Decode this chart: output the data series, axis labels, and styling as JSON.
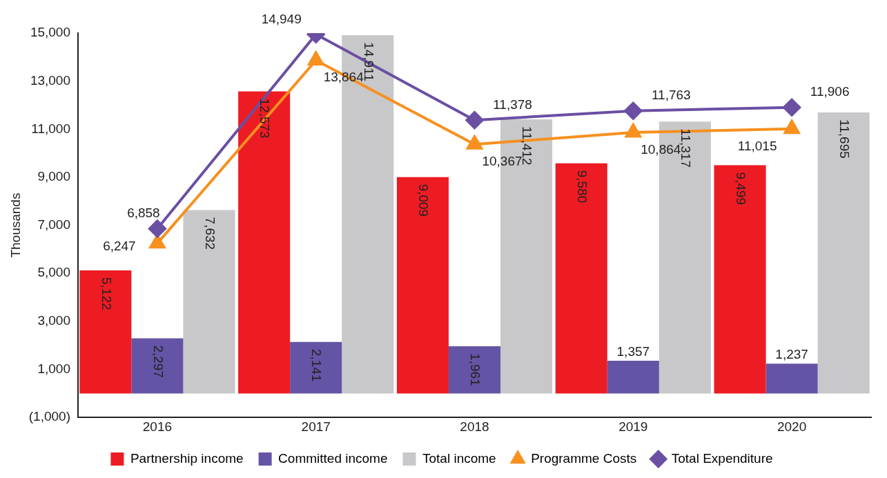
{
  "chart_data": {
    "type": "bar",
    "ylabel": "Thousands",
    "categories": [
      "2016",
      "2017",
      "2018",
      "2019",
      "2020"
    ],
    "series": [
      {
        "name": "Partnership income",
        "color": "#ed1c24",
        "values": [
          5122,
          12573,
          9009,
          9580,
          9499
        ],
        "value_labels": [
          "5,122",
          "12,573",
          "9,009",
          "9,580",
          "9,499"
        ]
      },
      {
        "name": "Committed income",
        "color": "#6554a5",
        "values": [
          2297,
          2141,
          1961,
          1357,
          1237
        ],
        "value_labels": [
          "2,297",
          "2,141",
          "1,961",
          "1,357",
          "1,237"
        ]
      },
      {
        "name": "Total income",
        "color": "#c8c8ca",
        "values": [
          7632,
          14911,
          11412,
          11317,
          11695
        ],
        "value_labels": [
          "7,632",
          "14,911",
          "11,412",
          "11,317",
          "11,695"
        ]
      },
      {
        "name": "Programme Costs",
        "type": "line",
        "color": "#f7901e",
        "marker": "triangle",
        "values": [
          6247,
          13864,
          10367,
          10864,
          11015
        ],
        "value_labels": [
          "6,247",
          "13,864",
          "10,367",
          "10,864",
          "11,015"
        ]
      },
      {
        "name": "Total Expenditure",
        "type": "line",
        "color": "#6a4fa3",
        "marker": "diamond",
        "values": [
          6858,
          14949,
          11378,
          11763,
          11906
        ],
        "value_labels": [
          "6,858",
          "14,949",
          "11,378",
          "11,763",
          "11,906"
        ]
      }
    ],
    "ylim": [
      -1000,
      15000
    ],
    "yticks": [
      {
        "value": -1000,
        "label": "(1,000)"
      },
      {
        "value": 1000,
        "label": "1,000"
      },
      {
        "value": 3000,
        "label": "3,000"
      },
      {
        "value": 5000,
        "label": "5,000"
      },
      {
        "value": 7000,
        "label": "7,000"
      },
      {
        "value": 9000,
        "label": "9,000"
      },
      {
        "value": 11000,
        "label": "11,000"
      },
      {
        "value": 13000,
        "label": "13,000"
      },
      {
        "value": 15000,
        "label": "15,000"
      }
    ],
    "grid": false,
    "legend": "bottom"
  }
}
